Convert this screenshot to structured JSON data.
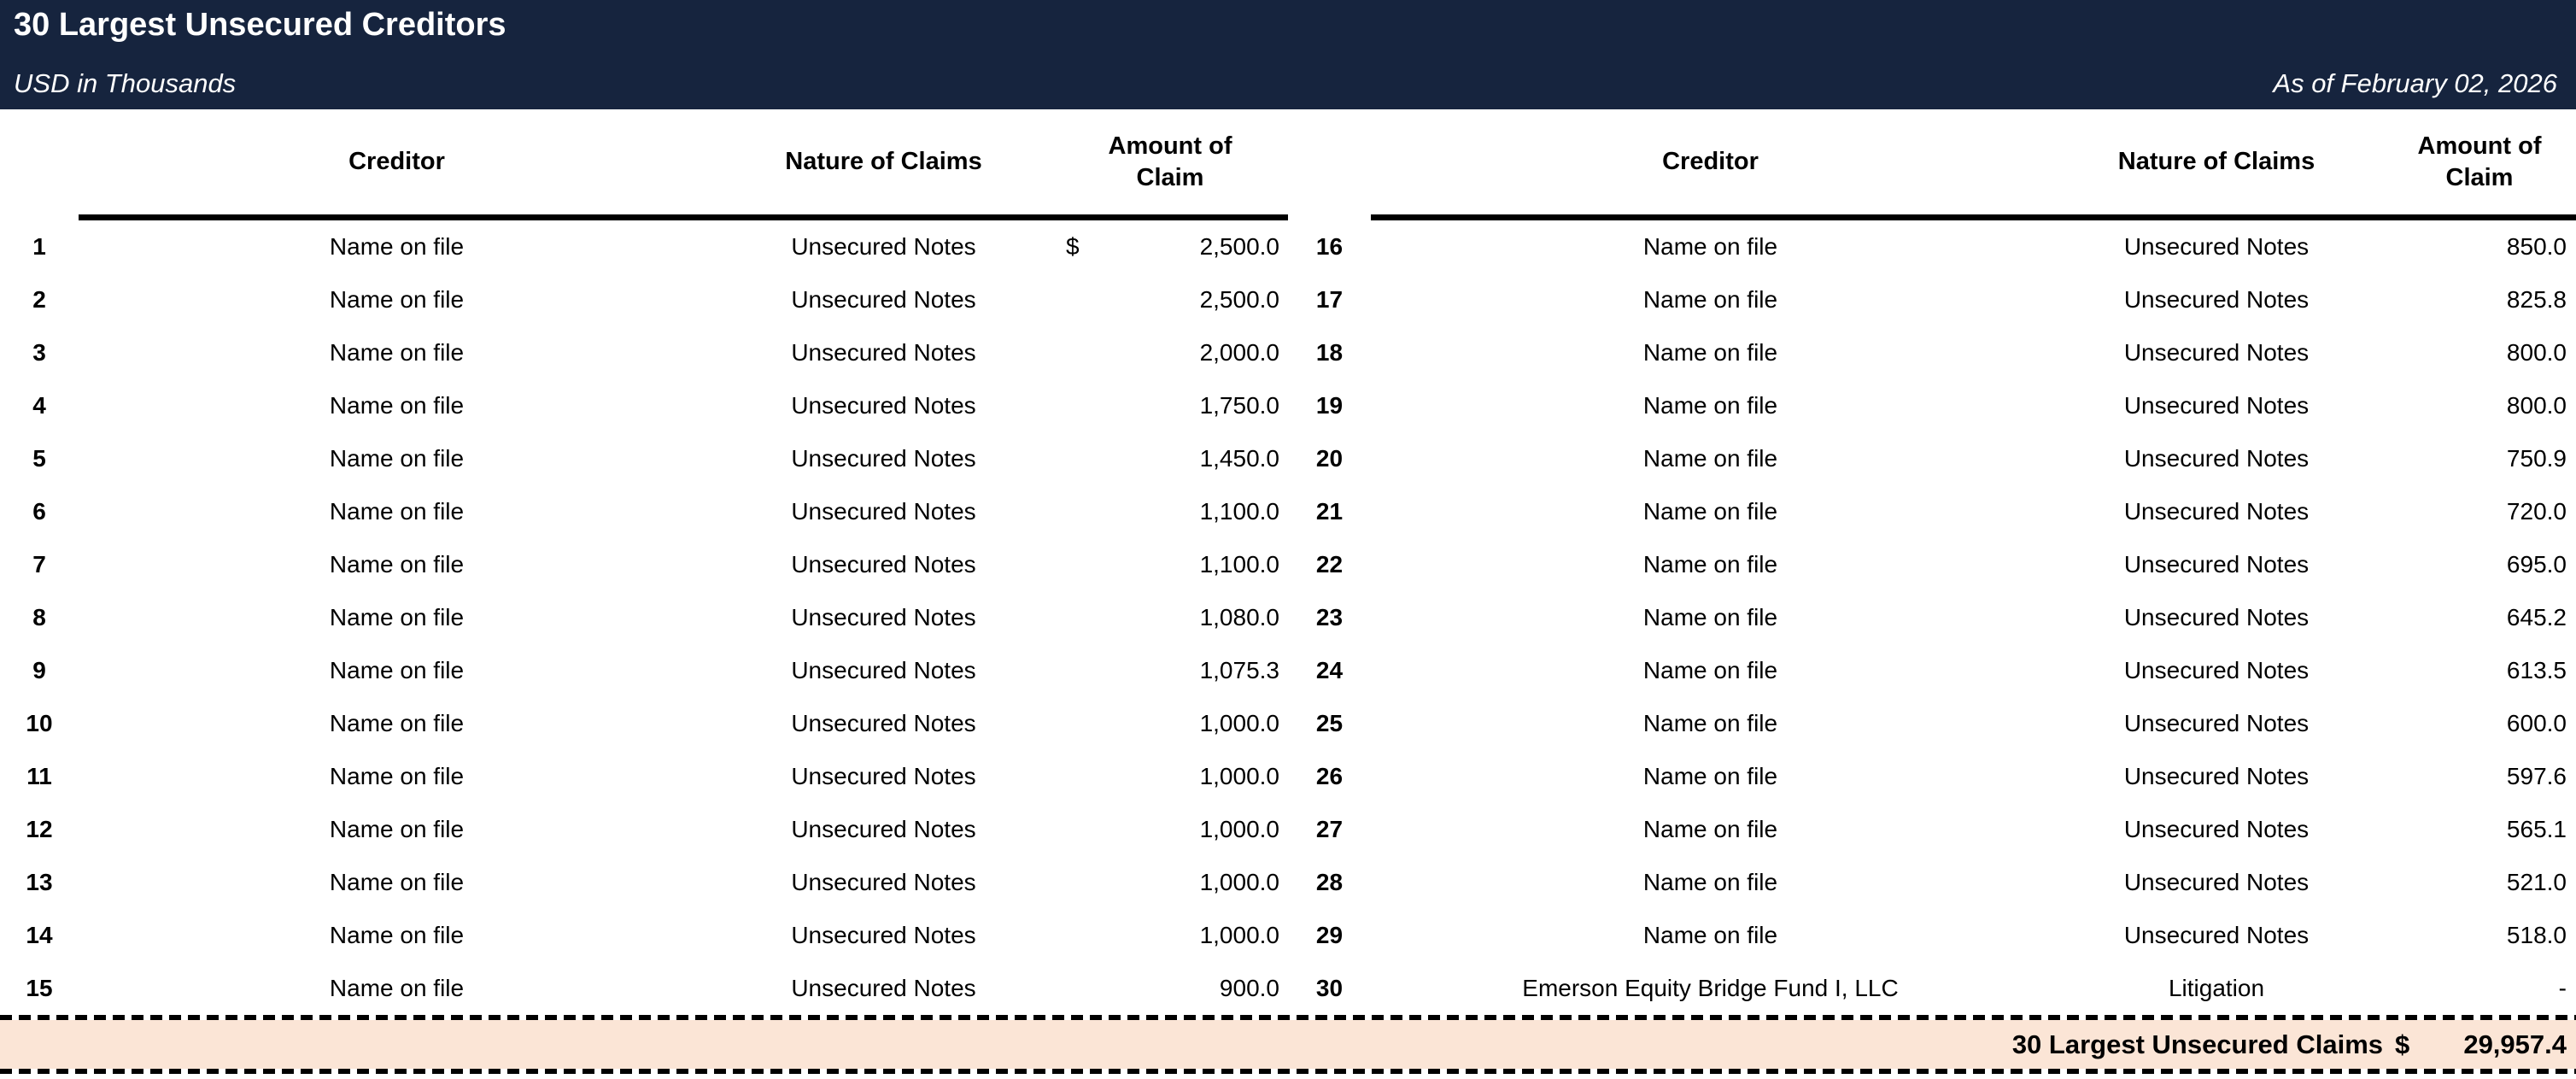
{
  "header": {
    "title": "30 Largest Unsecured Creditors",
    "subtitle": "USD in Thousands",
    "as_of": "As of February 02, 2026"
  },
  "columns": {
    "creditor": "Creditor",
    "nature": "Nature of Claims",
    "amount_line1": "Amount of",
    "amount_line2": "Claim"
  },
  "left_rows": [
    {
      "num": "1",
      "creditor": "Name on file",
      "nature": "Unsecured Notes",
      "currency": "$",
      "amount": "2,500.0"
    },
    {
      "num": "2",
      "creditor": "Name on file",
      "nature": "Unsecured Notes",
      "currency": "",
      "amount": "2,500.0"
    },
    {
      "num": "3",
      "creditor": "Name on file",
      "nature": "Unsecured Notes",
      "currency": "",
      "amount": "2,000.0"
    },
    {
      "num": "4",
      "creditor": "Name on file",
      "nature": "Unsecured Notes",
      "currency": "",
      "amount": "1,750.0"
    },
    {
      "num": "5",
      "creditor": "Name on file",
      "nature": "Unsecured Notes",
      "currency": "",
      "amount": "1,450.0"
    },
    {
      "num": "6",
      "creditor": "Name on file",
      "nature": "Unsecured Notes",
      "currency": "",
      "amount": "1,100.0"
    },
    {
      "num": "7",
      "creditor": "Name on file",
      "nature": "Unsecured Notes",
      "currency": "",
      "amount": "1,100.0"
    },
    {
      "num": "8",
      "creditor": "Name on file",
      "nature": "Unsecured Notes",
      "currency": "",
      "amount": "1,080.0"
    },
    {
      "num": "9",
      "creditor": "Name on file",
      "nature": "Unsecured Notes",
      "currency": "",
      "amount": "1,075.3"
    },
    {
      "num": "10",
      "creditor": "Name on file",
      "nature": "Unsecured Notes",
      "currency": "",
      "amount": "1,000.0"
    },
    {
      "num": "11",
      "creditor": "Name on file",
      "nature": "Unsecured Notes",
      "currency": "",
      "amount": "1,000.0"
    },
    {
      "num": "12",
      "creditor": "Name on file",
      "nature": "Unsecured Notes",
      "currency": "",
      "amount": "1,000.0"
    },
    {
      "num": "13",
      "creditor": "Name on file",
      "nature": "Unsecured Notes",
      "currency": "",
      "amount": "1,000.0"
    },
    {
      "num": "14",
      "creditor": "Name on file",
      "nature": "Unsecured Notes",
      "currency": "",
      "amount": "1,000.0"
    },
    {
      "num": "15",
      "creditor": "Name on file",
      "nature": "Unsecured Notes",
      "currency": "",
      "amount": "900.0"
    }
  ],
  "right_rows": [
    {
      "num": "16",
      "creditor": "Name on file",
      "nature": "Unsecured Notes",
      "currency": "",
      "amount": "850.0"
    },
    {
      "num": "17",
      "creditor": "Name on file",
      "nature": "Unsecured Notes",
      "currency": "",
      "amount": "825.8"
    },
    {
      "num": "18",
      "creditor": "Name on file",
      "nature": "Unsecured Notes",
      "currency": "",
      "amount": "800.0"
    },
    {
      "num": "19",
      "creditor": "Name on file",
      "nature": "Unsecured Notes",
      "currency": "",
      "amount": "800.0"
    },
    {
      "num": "20",
      "creditor": "Name on file",
      "nature": "Unsecured Notes",
      "currency": "",
      "amount": "750.9"
    },
    {
      "num": "21",
      "creditor": "Name on file",
      "nature": "Unsecured Notes",
      "currency": "",
      "amount": "720.0"
    },
    {
      "num": "22",
      "creditor": "Name on file",
      "nature": "Unsecured Notes",
      "currency": "",
      "amount": "695.0"
    },
    {
      "num": "23",
      "creditor": "Name on file",
      "nature": "Unsecured Notes",
      "currency": "",
      "amount": "645.2"
    },
    {
      "num": "24",
      "creditor": "Name on file",
      "nature": "Unsecured Notes",
      "currency": "",
      "amount": "613.5"
    },
    {
      "num": "25",
      "creditor": "Name on file",
      "nature": "Unsecured Notes",
      "currency": "",
      "amount": "600.0"
    },
    {
      "num": "26",
      "creditor": "Name on file",
      "nature": "Unsecured Notes",
      "currency": "",
      "amount": "597.6"
    },
    {
      "num": "27",
      "creditor": "Name on file",
      "nature": "Unsecured Notes",
      "currency": "",
      "amount": "565.1"
    },
    {
      "num": "28",
      "creditor": "Name on file",
      "nature": "Unsecured Notes",
      "currency": "",
      "amount": "521.0"
    },
    {
      "num": "29",
      "creditor": "Name on file",
      "nature": "Unsecured Notes",
      "currency": "",
      "amount": "518.0"
    },
    {
      "num": "30",
      "creditor": "Emerson Equity Bridge Fund I, LLC",
      "nature": "Litigation",
      "currency": "",
      "amount": "-"
    }
  ],
  "total": {
    "label": "30 Largest Unsecured Claims",
    "currency": "$",
    "amount": "29,957.4"
  },
  "colors": {
    "header_bg": "#16243E",
    "total_bg": "#FBE5D6"
  }
}
